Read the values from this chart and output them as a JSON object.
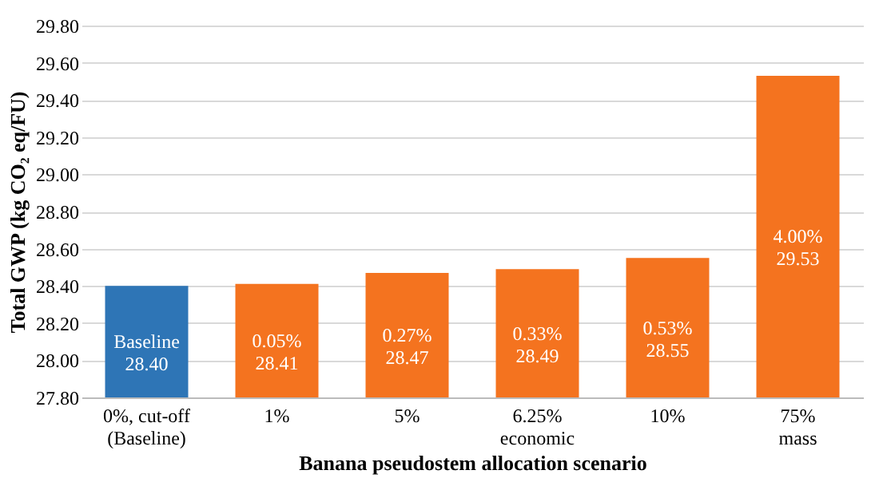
{
  "chart_data": {
    "type": "bar",
    "categories": [
      "0%, cut-off\n(Baseline)",
      "1%",
      "5%",
      "6.25%\neconomic",
      "10%",
      "75%\nmass"
    ],
    "values": [
      28.4,
      28.41,
      28.47,
      28.49,
      28.55,
      29.53
    ],
    "colors": [
      "#2e75b6",
      "#f4731f",
      "#f4731f",
      "#f4731f",
      "#f4731f",
      "#f4731f"
    ],
    "value_labels": [
      "Baseline\n28.40",
      "0.05%\n28.41",
      "0.27%\n28.47",
      "0.33%\n28.49",
      "0.53%\n28.55",
      "4.00%\n29.53"
    ],
    "xlabel": "Banana pseudostem allocation scenario",
    "ylabel": "Total GWP (kg CO₂ eq/FU)",
    "ylim": [
      27.8,
      29.8
    ],
    "yticks": [
      {
        "value": 27.8,
        "label": "27.80"
      },
      {
        "value": 28.0,
        "label": "28.00"
      },
      {
        "value": 28.2,
        "label": "28.20"
      },
      {
        "value": 28.4,
        "label": "28.40"
      },
      {
        "value": 28.6,
        "label": "28.60"
      },
      {
        "value": 28.8,
        "label": "28.80"
      },
      {
        "value": 29.0,
        "label": "29.00"
      },
      {
        "value": 29.2,
        "label": "29.20"
      },
      {
        "value": 29.4,
        "label": "29.40"
      },
      {
        "value": 29.6,
        "label": "29.60"
      },
      {
        "value": 29.8,
        "label": "29.80"
      }
    ],
    "grid": "y"
  }
}
